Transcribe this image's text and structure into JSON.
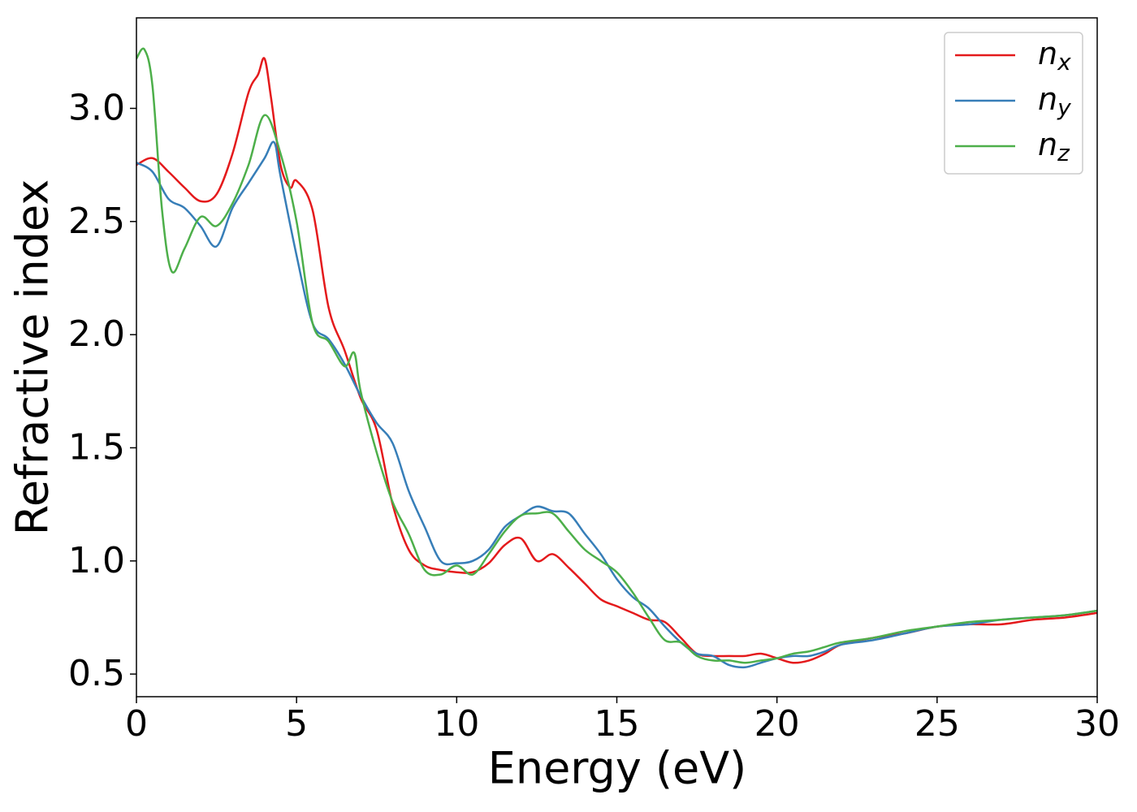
{
  "chart_data": {
    "type": "line",
    "xlabel": "Energy (eV)",
    "ylabel": "Refractive index",
    "xlim": [
      0,
      30
    ],
    "ylim": [
      0.4,
      3.4
    ],
    "xticks": [
      0,
      5,
      10,
      15,
      20,
      25,
      30
    ],
    "yticks": [
      0.5,
      {
        "value": 1,
        "label": "1.0"
      },
      1.5,
      {
        "value": 2,
        "label": "2.0"
      },
      2.5,
      {
        "value": 3,
        "label": "3.0"
      }
    ],
    "grid": false,
    "legend": "upper right",
    "series": [
      {
        "name": "n_x",
        "color": "#e41a1c",
        "x": [
          0,
          0.5,
          1,
          1.5,
          2,
          2.5,
          3,
          3.5,
          3.8,
          4,
          4.2,
          4.5,
          4.8,
          5,
          5.5,
          6,
          6.5,
          7,
          7.5,
          8,
          8.5,
          9,
          9.5,
          10,
          10.5,
          11,
          11.5,
          12,
          12.5,
          13,
          13.5,
          14,
          14.5,
          15,
          15.5,
          16,
          16.5,
          17,
          17.5,
          18,
          18.5,
          19,
          19.5,
          20,
          20.5,
          21,
          21.5,
          22,
          23,
          24,
          25,
          26,
          27,
          28,
          29,
          30
        ],
        "values": [
          2.75,
          2.78,
          2.72,
          2.65,
          2.59,
          2.62,
          2.8,
          3.07,
          3.15,
          3.22,
          3.05,
          2.75,
          2.65,
          2.68,
          2.55,
          2.12,
          1.93,
          1.72,
          1.58,
          1.25,
          1.05,
          0.98,
          0.96,
          0.95,
          0.95,
          0.99,
          1.07,
          1.1,
          1.0,
          1.03,
          0.97,
          0.9,
          0.83,
          0.8,
          0.77,
          0.74,
          0.73,
          0.66,
          0.59,
          0.58,
          0.58,
          0.58,
          0.59,
          0.57,
          0.55,
          0.56,
          0.59,
          0.63,
          0.66,
          0.68,
          0.71,
          0.72,
          0.72,
          0.74,
          0.75,
          0.77
        ]
      },
      {
        "name": "n_y",
        "color": "#377eb8",
        "x": [
          0,
          0.5,
          1,
          1.5,
          2,
          2.5,
          3,
          3.5,
          4,
          4.3,
          4.5,
          5,
          5.5,
          6,
          6.5,
          7,
          7.5,
          8,
          8.5,
          9,
          9.5,
          10,
          10.5,
          11,
          11.5,
          12,
          12.5,
          13,
          13.5,
          14,
          14.5,
          15,
          15.5,
          16,
          16.5,
          17,
          17.5,
          18,
          18.5,
          19,
          19.5,
          20,
          20.5,
          21,
          21.5,
          22,
          23,
          24,
          25,
          26,
          27,
          28,
          29,
          30
        ],
        "values": [
          2.76,
          2.72,
          2.6,
          2.56,
          2.48,
          2.39,
          2.56,
          2.67,
          2.78,
          2.85,
          2.7,
          2.35,
          2.05,
          1.98,
          1.87,
          1.73,
          1.61,
          1.52,
          1.31,
          1.15,
          1.0,
          0.99,
          1.0,
          1.05,
          1.15,
          1.2,
          1.24,
          1.22,
          1.21,
          1.12,
          1.03,
          0.92,
          0.84,
          0.79,
          0.71,
          0.64,
          0.59,
          0.58,
          0.54,
          0.53,
          0.55,
          0.57,
          0.58,
          0.58,
          0.6,
          0.63,
          0.65,
          0.68,
          0.71,
          0.72,
          0.74,
          0.75,
          0.76,
          0.78
        ]
      },
      {
        "name": "n_z",
        "color": "#4daf4a",
        "x": [
          0,
          0.25,
          0.5,
          0.8,
          1.1,
          1.5,
          2,
          2.5,
          3,
          3.5,
          4,
          4.5,
          5,
          5.5,
          6,
          6.5,
          6.8,
          7,
          7.5,
          8,
          8.5,
          9,
          9.5,
          10,
          10.5,
          11,
          11.5,
          12,
          12.5,
          13,
          13.5,
          14,
          14.5,
          15,
          15.5,
          16,
          16.5,
          17,
          17.5,
          18,
          18.5,
          19,
          19.5,
          20,
          20.5,
          21,
          21.5,
          22,
          23,
          24,
          25,
          26,
          27,
          28,
          29,
          30
        ],
        "values": [
          3.22,
          3.26,
          3.1,
          2.55,
          2.28,
          2.38,
          2.52,
          2.48,
          2.58,
          2.75,
          2.97,
          2.8,
          2.5,
          2.05,
          1.97,
          1.86,
          1.92,
          1.75,
          1.48,
          1.26,
          1.12,
          0.96,
          0.94,
          0.98,
          0.94,
          1.03,
          1.13,
          1.2,
          1.21,
          1.21,
          1.13,
          1.05,
          1.0,
          0.95,
          0.86,
          0.75,
          0.65,
          0.64,
          0.58,
          0.56,
          0.56,
          0.55,
          0.56,
          0.57,
          0.59,
          0.6,
          0.62,
          0.64,
          0.66,
          0.69,
          0.71,
          0.73,
          0.74,
          0.75,
          0.76,
          0.78
        ]
      }
    ]
  }
}
